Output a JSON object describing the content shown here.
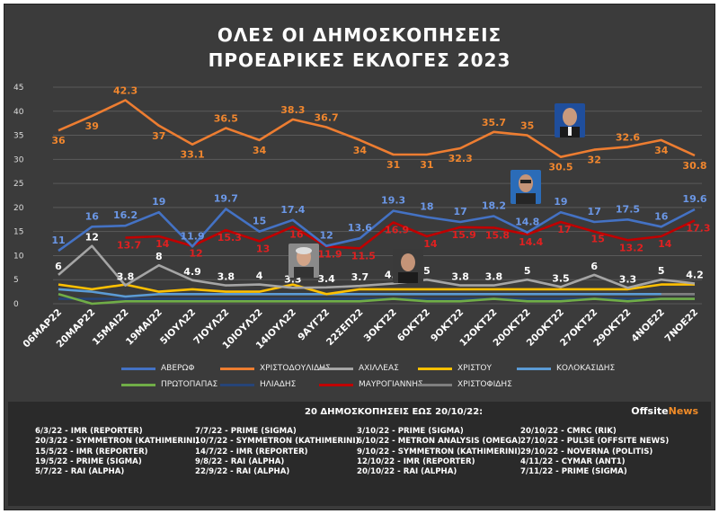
{
  "title_line1": "ΟΛΕΣ ΟΙ ΔΗΜΟΣΚΟΠΗΣΕΙΣ",
  "title_line2": "ΠΡΟΕΔΡΙΚΕΣ ΕΚΛΟΓΕΣ 2023",
  "chart_data": {
    "type": "line",
    "categories": [
      "06ΜΑΡ22",
      "20ΜΑΡ22",
      "15ΜΑΙ22",
      "19ΜΑΙ22",
      "5ΙΟΥΛ22",
      "7ΙΟΥΛ22",
      "10ΙΟΥΛ22",
      "14ΙΟΥΛ22",
      "9ΑΥΓ22",
      "22ΣΕΠ22",
      "3ΟΚΤ22",
      "6ΟΚΤ22",
      "9ΟΚΤ22",
      "12ΟΚΤ22",
      "20ΟΚΤ22",
      "20ΟΚΤ22",
      "27ΟΚΤ22",
      "29ΟΚΤ22",
      "4ΝΟΕ22",
      "7ΝΟΕ22"
    ],
    "ylim": [
      0,
      45
    ],
    "yticks": [
      0,
      5,
      10,
      15,
      20,
      25,
      30,
      35,
      40,
      45
    ],
    "grid": true,
    "legend_position": "bottom",
    "series": [
      {
        "name": "ΑΒΕΡΩΦ",
        "color": "#4472c4",
        "values": [
          11,
          16,
          16.2,
          19,
          11.9,
          19.7,
          15,
          17.4,
          12,
          13.6,
          19.3,
          18,
          17,
          18.2,
          14.8,
          19,
          17,
          17.5,
          16,
          19.6
        ],
        "labels": [
          "11",
          "16",
          "16.2",
          "19",
          "11.9",
          "19.7",
          "15",
          "17.4",
          "12",
          "13.6",
          "19.3",
          "18",
          "17",
          "18.2",
          "14.8",
          "19",
          "17",
          "17.5",
          "16",
          "19.6"
        ],
        "label_color": "#6b97e6"
      },
      {
        "name": "ΧΡΙΣΤΟΔΟΥΛΙΔΗΣ",
        "color": "#ed7d31",
        "values": [
          36,
          39,
          42.3,
          37,
          33.1,
          36.5,
          34,
          38.3,
          36.7,
          34,
          31,
          31,
          32.3,
          35.7,
          35,
          30.5,
          32,
          32.6,
          34,
          30.8
        ],
        "labels": [
          "36",
          "39",
          "42.3",
          "37",
          "33.1",
          "36.5",
          "34",
          "38.3",
          "36.7",
          "34",
          "31",
          "31",
          "32.3",
          "35.7",
          "35",
          "30.5",
          "32",
          "32.6",
          "34",
          "30.8"
        ],
        "label_color": "#f0862e"
      },
      {
        "name": "ΑΧΙΛΛΕΑΣ",
        "color": "#a5a5a5",
        "values": [
          6,
          12,
          3.8,
          8,
          4.9,
          3.8,
          4,
          3.3,
          3.4,
          3.7,
          4.2,
          5,
          3.8,
          3.8,
          5,
          3.5,
          6,
          3.3,
          5,
          4.2
        ],
        "labels": [
          "6",
          "12",
          "3.8",
          "8",
          "4.9",
          "3.8",
          "4",
          "3.3",
          "3.4",
          "3.7",
          "4.2",
          "5",
          "3.8",
          "3.8",
          "5",
          "3.5",
          "6",
          "3.3",
          "5",
          "4.2"
        ],
        "label_color": "#ffffff"
      },
      {
        "name": "ΧΡΙΣΤΟΥ",
        "color": "#ffc000",
        "values": [
          4,
          3,
          4,
          2.5,
          3,
          2.5,
          2.5,
          4,
          2,
          3,
          3,
          3,
          3,
          3,
          3,
          3,
          3,
          3,
          4,
          4
        ],
        "labels": []
      },
      {
        "name": "ΚΟΛΟΚΑΣΙΔΗΣ",
        "color": "#5b9bd5",
        "values": [
          3,
          2.5,
          1.5,
          2,
          2,
          2,
          2,
          2,
          2,
          2,
          2,
          2,
          2,
          2,
          2,
          2,
          2,
          2,
          2,
          2
        ],
        "labels": []
      },
      {
        "name": "ΠΡΩΤΟΠΑΠΑΣ",
        "color": "#70ad47",
        "values": [
          2,
          0,
          0.5,
          0.5,
          0.5,
          0.5,
          0.5,
          0.5,
          0.5,
          0.5,
          1,
          0.5,
          0.5,
          1,
          0.5,
          0.5,
          1,
          0.5,
          1,
          1
        ],
        "labels": []
      },
      {
        "name": "ΗΛΙΑΔΗΣ",
        "color": "#264478",
        "values": [
          1,
          1,
          1,
          1,
          1,
          1,
          1,
          1,
          1,
          1,
          1,
          1,
          1,
          1,
          1,
          1,
          1,
          1,
          1,
          1
        ],
        "labels": []
      },
      {
        "name": "ΜΑΥΡΟΓΙΑΝΝΗΣ",
        "color": "#c00000",
        "values": [
          null,
          null,
          13.7,
          14,
          12,
          15.3,
          13,
          16,
          11.9,
          11.5,
          16.9,
          14,
          15.9,
          15.8,
          14.4,
          17,
          15,
          13.2,
          14,
          17.3
        ],
        "labels": [
          "",
          "",
          "13.7",
          "14",
          "12",
          "15.3",
          "13",
          "16",
          "11.9",
          "11.5",
          "16.9",
          "14",
          "15.9",
          "15.8",
          "14.4",
          "17",
          "15",
          "13.2",
          "14",
          "17.3"
        ],
        "label_color": "#e02020"
      },
      {
        "name": "ΧΡΙΣΤΟΦΙΔΗΣ",
        "color": "#7f7f7f",
        "values": [
          null,
          null,
          null,
          null,
          null,
          null,
          null,
          null,
          null,
          null,
          null,
          null,
          null,
          null,
          null,
          null,
          null,
          null,
          2,
          2
        ],
        "labels": []
      }
    ]
  },
  "footer": {
    "title": "20 ΔΗΜΟΣΚΟΠΗΣΕΙΣ ΕΩΣ 20/10/22:",
    "brand_a": "Offsite",
    "brand_b": "News",
    "col1": [
      "6/3/22 - IMR (REPORTER)",
      "20/3/22 - SYMMETRON (KATHIMERINI)",
      "15/5/22 - IMR (REPORTER)",
      "19/5/22 - PRIME (SIGMA)",
      "5/7/22 - RAI (ALPHA)"
    ],
    "col2": [
      "7/7/22 - PRIME (SIGMA)",
      "10/7/22 - SYMMETRON (KATHIMERINI)",
      "14/7/22 - IMR (REPORTER)",
      "9/8/22 - RAI (ALPHA)",
      "22/9/22 - RAI (ALPHA)"
    ],
    "col3": [
      "3/10/22 - PRIME (SIGMA)",
      "6/10/22 - METRON ANALYSIS (OMEGA)",
      "9/10/22 - SYMMETRON (KATHIMERINI)",
      "12/10/22 - IMR (REPORTER)",
      "20/10/22 - RAI (ALPHA)"
    ],
    "col4": [
      "20/10/22 - CMRC (RIK)",
      "27/10/22 - PULSE (OFFSITE NEWS)",
      "29/10/22 - NOVERNA (POLITIS)",
      "4/11/22 - CYMAR (ANT1)",
      "7/11/22 - PRIME (SIGMA)"
    ]
  }
}
